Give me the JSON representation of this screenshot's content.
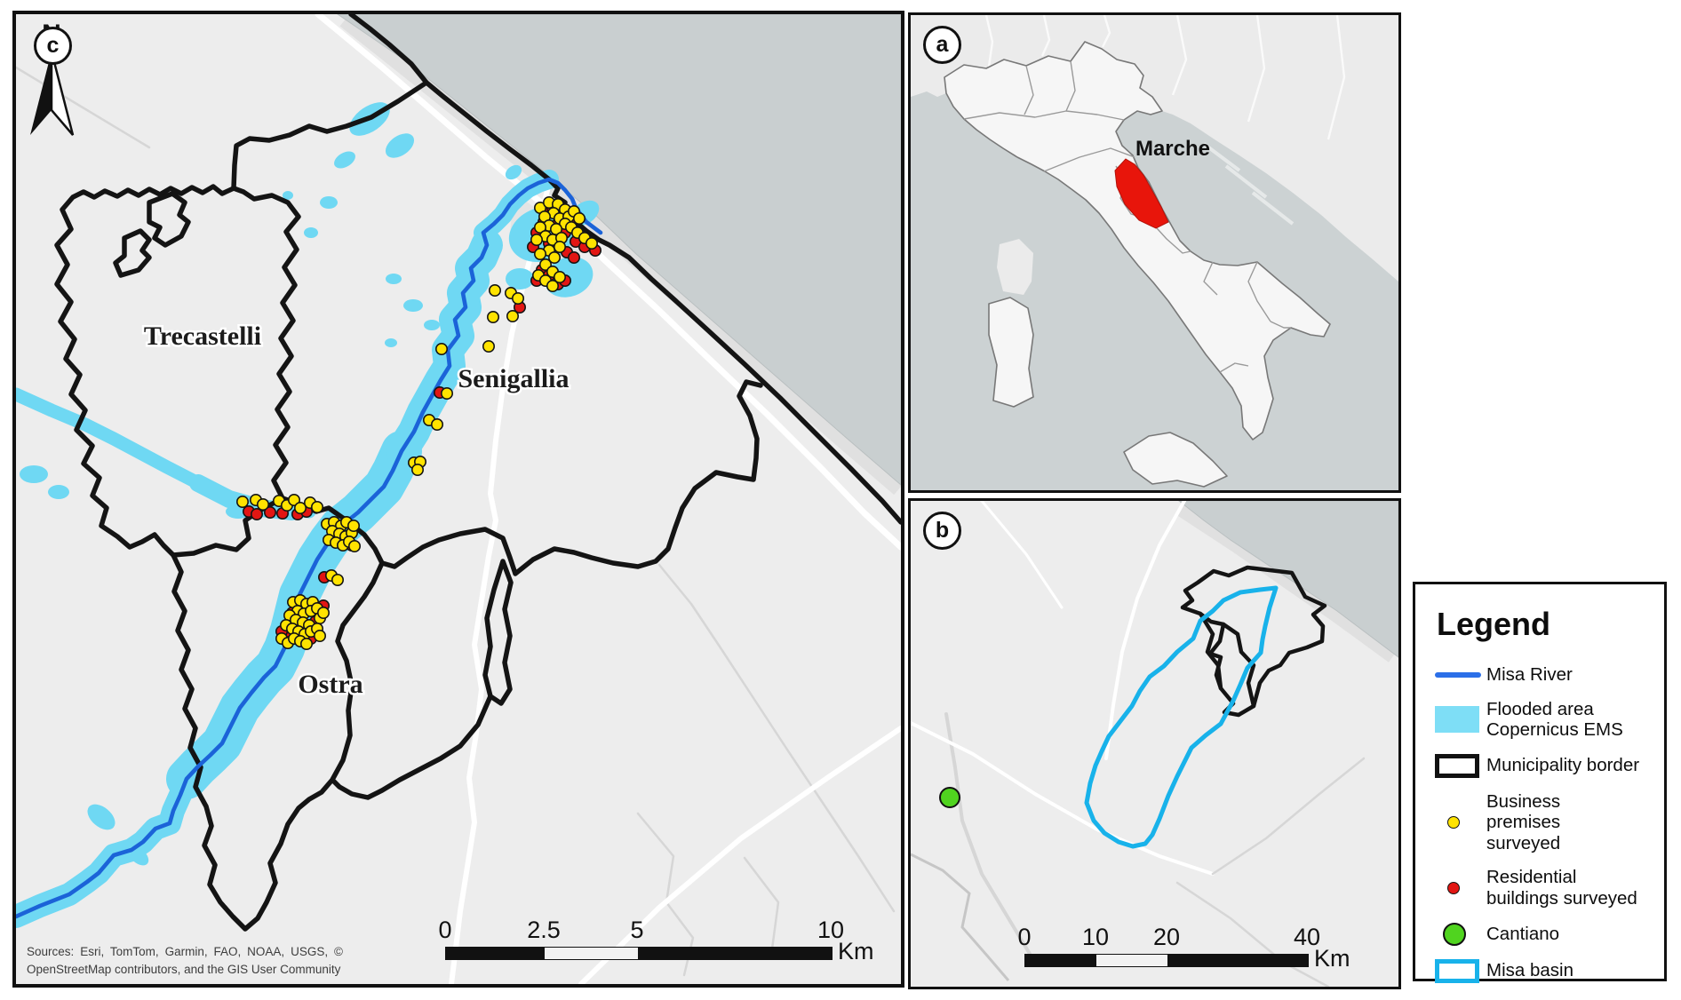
{
  "colors": {
    "sea": "#c9cfd0",
    "land": "#ededed",
    "flooded_area": "#6fd8f3",
    "misa_river": "#1b63d8",
    "misa_basin_outline": "#18b2ea",
    "municipality_border": "#141414",
    "marche_region": "#e8150b",
    "business_dot": "#ffe300",
    "residential_dot": "#e21613",
    "cantiano_dot": "#50d41f"
  },
  "panel_a": {
    "letter": "a",
    "region_label": "Marche"
  },
  "panel_b": {
    "letter": "b",
    "scalebar": {
      "ticks": [
        "0",
        "10",
        "20",
        "40"
      ],
      "unit": "Km"
    }
  },
  "panel_c": {
    "letter": "c",
    "north_label": "N",
    "labels": {
      "municipality_1": "Trecastelli",
      "municipality_2": "Senigallia",
      "municipality_3": "Ostra"
    },
    "scalebar": {
      "ticks": [
        "0",
        "2.5",
        "5",
        "10"
      ],
      "unit": "Km"
    },
    "sources": "Sources: Esri, TomTom, Garmin, FAO, NOAA, USGS, © OpenStreetMap contributors, and the GIS User Community",
    "markers": {
      "business": [
        [
          590,
          218
        ],
        [
          600,
          212
        ],
        [
          610,
          214
        ],
        [
          618,
          220
        ],
        [
          605,
          224
        ],
        [
          595,
          228
        ],
        [
          612,
          230
        ],
        [
          622,
          228
        ],
        [
          628,
          222
        ],
        [
          634,
          230
        ],
        [
          618,
          236
        ],
        [
          600,
          238
        ],
        [
          590,
          240
        ],
        [
          608,
          242
        ],
        [
          625,
          240
        ],
        [
          632,
          246
        ],
        [
          596,
          250
        ],
        [
          586,
          254
        ],
        [
          604,
          254
        ],
        [
          614,
          252
        ],
        [
          640,
          252
        ],
        [
          648,
          258
        ],
        [
          612,
          262
        ],
        [
          600,
          266
        ],
        [
          590,
          270
        ],
        [
          606,
          274
        ],
        [
          596,
          282
        ],
        [
          604,
          290
        ],
        [
          612,
          296
        ],
        [
          588,
          294
        ],
        [
          596,
          300
        ],
        [
          604,
          306
        ],
        [
          539,
          311
        ],
        [
          557,
          314
        ],
        [
          565,
          320
        ],
        [
          559,
          340
        ],
        [
          537,
          341
        ],
        [
          532,
          374
        ],
        [
          479,
          377
        ],
        [
          485,
          427
        ],
        [
          465,
          457
        ],
        [
          474,
          462
        ],
        [
          448,
          505
        ],
        [
          455,
          504
        ],
        [
          452,
          513
        ],
        [
          255,
          549
        ],
        [
          270,
          547
        ],
        [
          278,
          552
        ],
        [
          296,
          548
        ],
        [
          305,
          553
        ],
        [
          313,
          547
        ],
        [
          320,
          556
        ],
        [
          331,
          550
        ],
        [
          339,
          555
        ],
        [
          350,
          574
        ],
        [
          358,
          572
        ],
        [
          366,
          576
        ],
        [
          372,
          572
        ],
        [
          356,
          582
        ],
        [
          364,
          585
        ],
        [
          371,
          588
        ],
        [
          378,
          584
        ],
        [
          352,
          592
        ],
        [
          360,
          595
        ],
        [
          368,
          598
        ],
        [
          375,
          594
        ],
        [
          380,
          576
        ],
        [
          381,
          599
        ],
        [
          355,
          632
        ],
        [
          362,
          637
        ],
        [
          312,
          662
        ],
        [
          320,
          660
        ],
        [
          327,
          664
        ],
        [
          334,
          662
        ],
        [
          317,
          672
        ],
        [
          324,
          675
        ],
        [
          332,
          672
        ],
        [
          339,
          669
        ],
        [
          308,
          677
        ],
        [
          315,
          682
        ],
        [
          323,
          685
        ],
        [
          330,
          688
        ],
        [
          342,
          680
        ],
        [
          304,
          688
        ],
        [
          311,
          692
        ],
        [
          318,
          695
        ],
        [
          325,
          698
        ],
        [
          332,
          695
        ],
        [
          339,
          692
        ],
        [
          346,
          674
        ],
        [
          299,
          703
        ],
        [
          306,
          708
        ],
        [
          313,
          703
        ],
        [
          320,
          706
        ],
        [
          327,
          709
        ],
        [
          342,
          700
        ]
      ],
      "residential": [
        [
          596,
          220
        ],
        [
          604,
          218
        ],
        [
          614,
          224
        ],
        [
          624,
          234
        ],
        [
          594,
          234
        ],
        [
          610,
          236
        ],
        [
          586,
          246
        ],
        [
          618,
          246
        ],
        [
          630,
          256
        ],
        [
          640,
          262
        ],
        [
          652,
          266
        ],
        [
          620,
          268
        ],
        [
          628,
          274
        ],
        [
          600,
          258
        ],
        [
          582,
          262
        ],
        [
          592,
          288
        ],
        [
          600,
          294
        ],
        [
          610,
          304
        ],
        [
          618,
          300
        ],
        [
          586,
          300
        ],
        [
          567,
          330
        ],
        [
          477,
          426
        ],
        [
          262,
          560
        ],
        [
          271,
          563
        ],
        [
          286,
          561
        ],
        [
          300,
          562
        ],
        [
          317,
          563
        ],
        [
          327,
          560
        ],
        [
          359,
          578
        ],
        [
          378,
          598
        ],
        [
          347,
          634
        ],
        [
          337,
          684
        ],
        [
          311,
          674
        ],
        [
          305,
          695
        ],
        [
          318,
          688
        ],
        [
          325,
          691
        ],
        [
          332,
          703
        ],
        [
          299,
          695
        ],
        [
          346,
          666
        ]
      ]
    }
  },
  "legend": {
    "title": "Legend",
    "items": [
      {
        "key": "misa-river",
        "label": "Misa River"
      },
      {
        "key": "flooded-area",
        "label": "Flooded area Copernicus EMS"
      },
      {
        "key": "municipality-border",
        "label": "Municipality border"
      },
      {
        "key": "business-premises",
        "label": "Business premises surveyed"
      },
      {
        "key": "residential-buildings",
        "label": "Residential buildings surveyed"
      },
      {
        "key": "cantiano",
        "label": "Cantiano"
      },
      {
        "key": "misa-basin",
        "label": "Misa basin"
      }
    ]
  }
}
